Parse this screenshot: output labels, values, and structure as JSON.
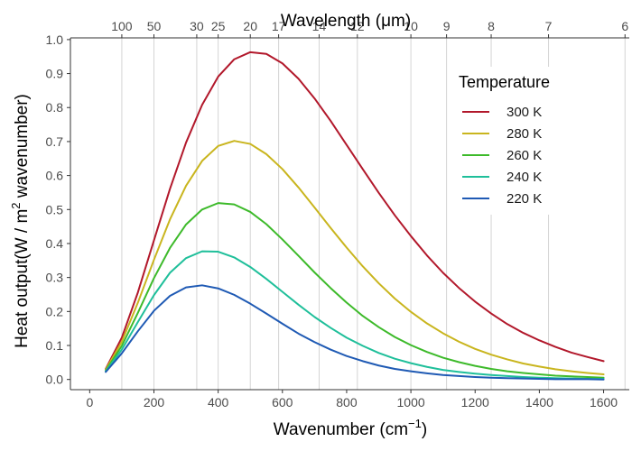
{
  "chart_data": {
    "type": "line",
    "xlabel": "Wavenumber",
    "xlabel_unit": "cm",
    "xlabel_unit_exp": "−1",
    "ylabel_prefix": "Heat output(W / m",
    "ylabel_exp": "2",
    "ylabel_suffix": " wavenumber)",
    "top_axis_label": "Wavelength (μm)",
    "xlim": [
      -60,
      1680
    ],
    "ylim": [
      -0.03,
      1.005
    ],
    "x_ticks": [
      0,
      200,
      400,
      600,
      800,
      1000,
      1200,
      1400,
      1600
    ],
    "x_tick_labels": [
      "0",
      "200",
      "400",
      "600",
      "800",
      "1000",
      "1200",
      "1400",
      "1600"
    ],
    "y_ticks": [
      0.0,
      0.1,
      0.2,
      0.3,
      0.4,
      0.5,
      0.6,
      0.7,
      0.8,
      0.9,
      1.0
    ],
    "y_tick_labels": [
      "0.0",
      "0.1",
      "0.2",
      "0.3",
      "0.4",
      "0.5",
      "0.6",
      "0.7",
      "0.8",
      "0.9",
      "1.0"
    ],
    "top_ticks_um": [
      100,
      50,
      30,
      25,
      20,
      17,
      14,
      12,
      10,
      9,
      8,
      7,
      6
    ],
    "top_tick_labels": [
      "100",
      "50",
      "30",
      "25",
      "20",
      "17",
      "14",
      "12",
      "10",
      "9",
      "8",
      "7",
      "6"
    ],
    "grid": "vertical at wavelength ticks",
    "legend_title": "Temperature",
    "legend_position": "top-right",
    "x": [
      50,
      100,
      150,
      200,
      250,
      300,
      350,
      400,
      450,
      500,
      550,
      600,
      650,
      700,
      750,
      800,
      850,
      900,
      950,
      1000,
      1050,
      1100,
      1150,
      1200,
      1250,
      1300,
      1350,
      1400,
      1450,
      1500,
      1550,
      1600
    ],
    "series": [
      {
        "name": "300 K",
        "color": "#b2182b",
        "values": [
          0.031,
          0.123,
          0.256,
          0.409,
          0.561,
          0.697,
          0.808,
          0.891,
          0.942,
          0.963,
          0.958,
          0.93,
          0.885,
          0.827,
          0.761,
          0.69,
          0.619,
          0.549,
          0.483,
          0.422,
          0.365,
          0.314,
          0.269,
          0.229,
          0.194,
          0.163,
          0.137,
          0.115,
          0.096,
          0.079,
          0.066,
          0.054
        ]
      },
      {
        "name": "280 K",
        "color": "#c9b51e",
        "values": [
          0.029,
          0.111,
          0.226,
          0.352,
          0.471,
          0.57,
          0.643,
          0.687,
          0.702,
          0.693,
          0.663,
          0.619,
          0.565,
          0.506,
          0.446,
          0.388,
          0.333,
          0.283,
          0.238,
          0.199,
          0.165,
          0.136,
          0.111,
          0.09,
          0.073,
          0.059,
          0.047,
          0.038,
          0.03,
          0.024,
          0.019,
          0.015
        ]
      },
      {
        "name": "260 K",
        "color": "#3dba2a",
        "values": [
          0.026,
          0.099,
          0.196,
          0.298,
          0.387,
          0.456,
          0.5,
          0.519,
          0.515,
          0.493,
          0.457,
          0.412,
          0.364,
          0.315,
          0.269,
          0.226,
          0.187,
          0.154,
          0.125,
          0.101,
          0.081,
          0.064,
          0.051,
          0.04,
          0.031,
          0.024,
          0.019,
          0.015,
          0.011,
          0.009,
          0.007,
          0.005
        ]
      },
      {
        "name": "240 K",
        "color": "#1fbf9a",
        "values": [
          0.024,
          0.088,
          0.169,
          0.248,
          0.314,
          0.357,
          0.377,
          0.376,
          0.359,
          0.331,
          0.296,
          0.258,
          0.22,
          0.184,
          0.152,
          0.123,
          0.099,
          0.078,
          0.061,
          0.048,
          0.037,
          0.028,
          0.022,
          0.017,
          0.013,
          0.01,
          0.007,
          0.005,
          0.004,
          0.003,
          0.002,
          0.002
        ]
      },
      {
        "name": "220 K",
        "color": "#1f5ab4",
        "values": [
          0.022,
          0.077,
          0.142,
          0.202,
          0.246,
          0.271,
          0.277,
          0.268,
          0.249,
          0.223,
          0.194,
          0.164,
          0.135,
          0.11,
          0.088,
          0.069,
          0.054,
          0.041,
          0.031,
          0.024,
          0.018,
          0.013,
          0.01,
          0.007,
          0.005,
          0.004,
          0.003,
          0.002,
          0.001,
          0.001,
          0.001,
          0.0
        ]
      }
    ]
  }
}
